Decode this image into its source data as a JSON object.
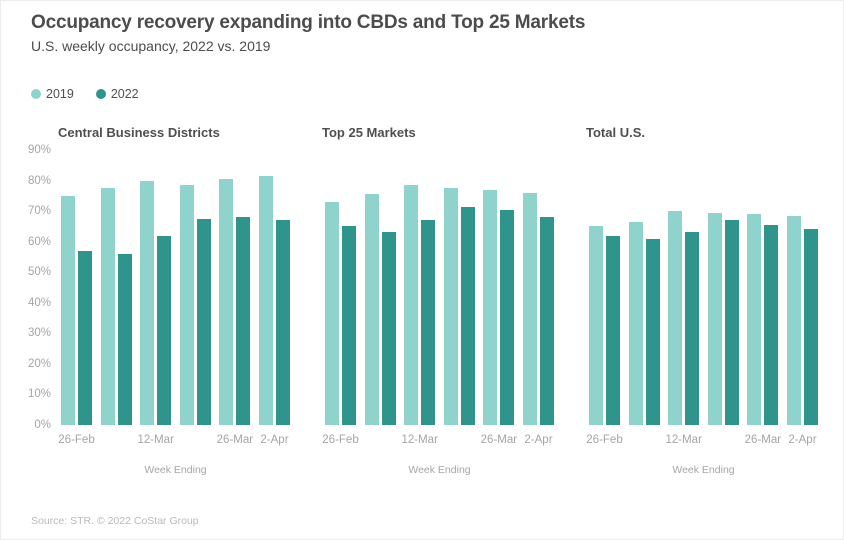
{
  "header": {
    "title": "Occupancy recovery expanding into CBDs and Top 25 Markets",
    "subtitle": "U.S. weekly occupancy, 2022 vs. 2019"
  },
  "legend": {
    "items": [
      {
        "label": "2019",
        "color": "#8fd3cc"
      },
      {
        "label": "2022",
        "color": "#2e948c"
      }
    ]
  },
  "footer": {
    "source": "Source: STR. © 2022 CoStar Group"
  },
  "colors": {
    "series_2019": "#8fd3cc",
    "series_2022": "#2e948c",
    "text_dark": "#4c4c4c",
    "text_axis": "#a5a5a5"
  },
  "chart_data": [
    {
      "type": "bar",
      "title": "Central Business Districts",
      "xlabel": "Week Ending",
      "ylim": [
        0,
        90
      ],
      "grid": false,
      "legend_position": "top-left",
      "show_y_axis": true,
      "y_tick_labels": [
        "90%",
        "80%",
        "70%",
        "60%",
        "50%",
        "40%",
        "30%",
        "20%",
        "10%",
        "0%"
      ],
      "x_tick_labels": [
        "26-Feb",
        "",
        "12-Mar",
        "",
        "26-Mar",
        "2-Apr"
      ],
      "series": [
        {
          "name": "2019",
          "color": "#8fd3cc",
          "values": [
            75,
            77.5,
            80,
            78.5,
            80.5,
            81.5
          ]
        },
        {
          "name": "2022",
          "color": "#2e948c",
          "values": [
            57,
            56,
            62,
            67.5,
            68,
            67
          ]
        }
      ]
    },
    {
      "type": "bar",
      "title": "Top 25 Markets",
      "xlabel": "Week Ending",
      "ylim": [
        0,
        90
      ],
      "grid": false,
      "show_y_axis": false,
      "y_tick_labels": [],
      "x_tick_labels": [
        "26-Feb",
        "",
        "12-Mar",
        "",
        "26-Mar",
        "2-Apr"
      ],
      "series": [
        {
          "name": "2019",
          "color": "#8fd3cc",
          "values": [
            73,
            75.5,
            78.5,
            77.5,
            77,
            76
          ]
        },
        {
          "name": "2022",
          "color": "#2e948c",
          "values": [
            65,
            63,
            67,
            71.5,
            70.5,
            68
          ]
        }
      ]
    },
    {
      "type": "bar",
      "title": "Total U.S.",
      "xlabel": "Week Ending",
      "ylim": [
        0,
        90
      ],
      "grid": false,
      "show_y_axis": false,
      "y_tick_labels": [],
      "x_tick_labels": [
        "26-Feb",
        "",
        "12-Mar",
        "",
        "26-Mar",
        "2-Apr"
      ],
      "series": [
        {
          "name": "2019",
          "color": "#8fd3cc",
          "values": [
            65,
            66.5,
            70,
            69.5,
            69,
            68.5
          ]
        },
        {
          "name": "2022",
          "color": "#2e948c",
          "values": [
            62,
            61,
            63,
            67,
            65.5,
            64
          ]
        }
      ]
    }
  ]
}
